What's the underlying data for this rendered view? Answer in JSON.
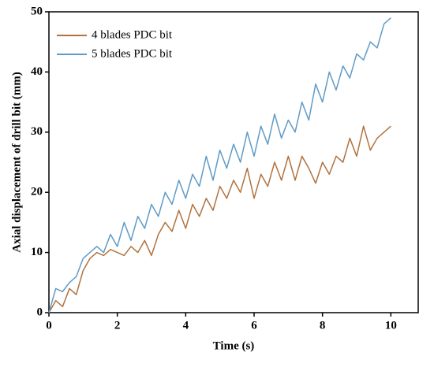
{
  "chart_data": {
    "type": "line",
    "xlabel": "Time (s)",
    "ylabel": "Axial displacement of drill bit (mm)",
    "x": [
      0,
      0.2,
      0.4,
      0.6,
      0.8,
      1.0,
      1.2,
      1.4,
      1.6,
      1.8,
      2.0,
      2.2,
      2.4,
      2.6,
      2.8,
      3.0,
      3.2,
      3.4,
      3.6,
      3.8,
      4.0,
      4.2,
      4.4,
      4.6,
      4.8,
      5.0,
      5.2,
      5.4,
      5.6,
      5.8,
      6.0,
      6.2,
      6.4,
      6.6,
      6.8,
      7.0,
      7.2,
      7.4,
      7.6,
      7.8,
      8.0,
      8.2,
      8.4,
      8.6,
      8.8,
      9.0,
      9.2,
      9.4,
      9.6,
      9.8,
      10.0
    ],
    "series": [
      {
        "name": "4 blades PDC bit",
        "color": "#b0723f",
        "values": [
          0,
          2,
          1,
          4,
          3,
          7,
          9,
          10,
          9.5,
          10.5,
          10,
          9.5,
          11,
          10,
          12,
          9.5,
          13,
          15,
          13.5,
          17,
          14,
          18,
          16,
          19,
          17,
          21,
          19,
          22,
          20,
          24,
          19,
          23,
          21,
          25,
          22,
          26,
          22,
          26,
          24,
          21.5,
          25,
          23,
          26,
          25,
          29,
          26,
          31,
          27,
          29,
          30,
          31
        ]
      },
      {
        "name": "5 blades PDC bit",
        "color": "#5f9bc6",
        "values": [
          0,
          4,
          3.5,
          5,
          6,
          9,
          10,
          11,
          10,
          13,
          11,
          15,
          12,
          16,
          14,
          18,
          16,
          20,
          18,
          22,
          19,
          23,
          21,
          26,
          22,
          27,
          24,
          28,
          25,
          30,
          26,
          31,
          28,
          33,
          29,
          32,
          30,
          35,
          32,
          38,
          35,
          40,
          37,
          41,
          39,
          43,
          42,
          45,
          44,
          48,
          49
        ]
      }
    ],
    "xlim": [
      0,
      10.8
    ],
    "ylim": [
      0,
      50
    ],
    "xticks": [
      0,
      2,
      4,
      6,
      8,
      10
    ],
    "yticks": [
      0,
      10,
      20,
      30,
      40,
      50
    ],
    "legend": "upper left"
  }
}
